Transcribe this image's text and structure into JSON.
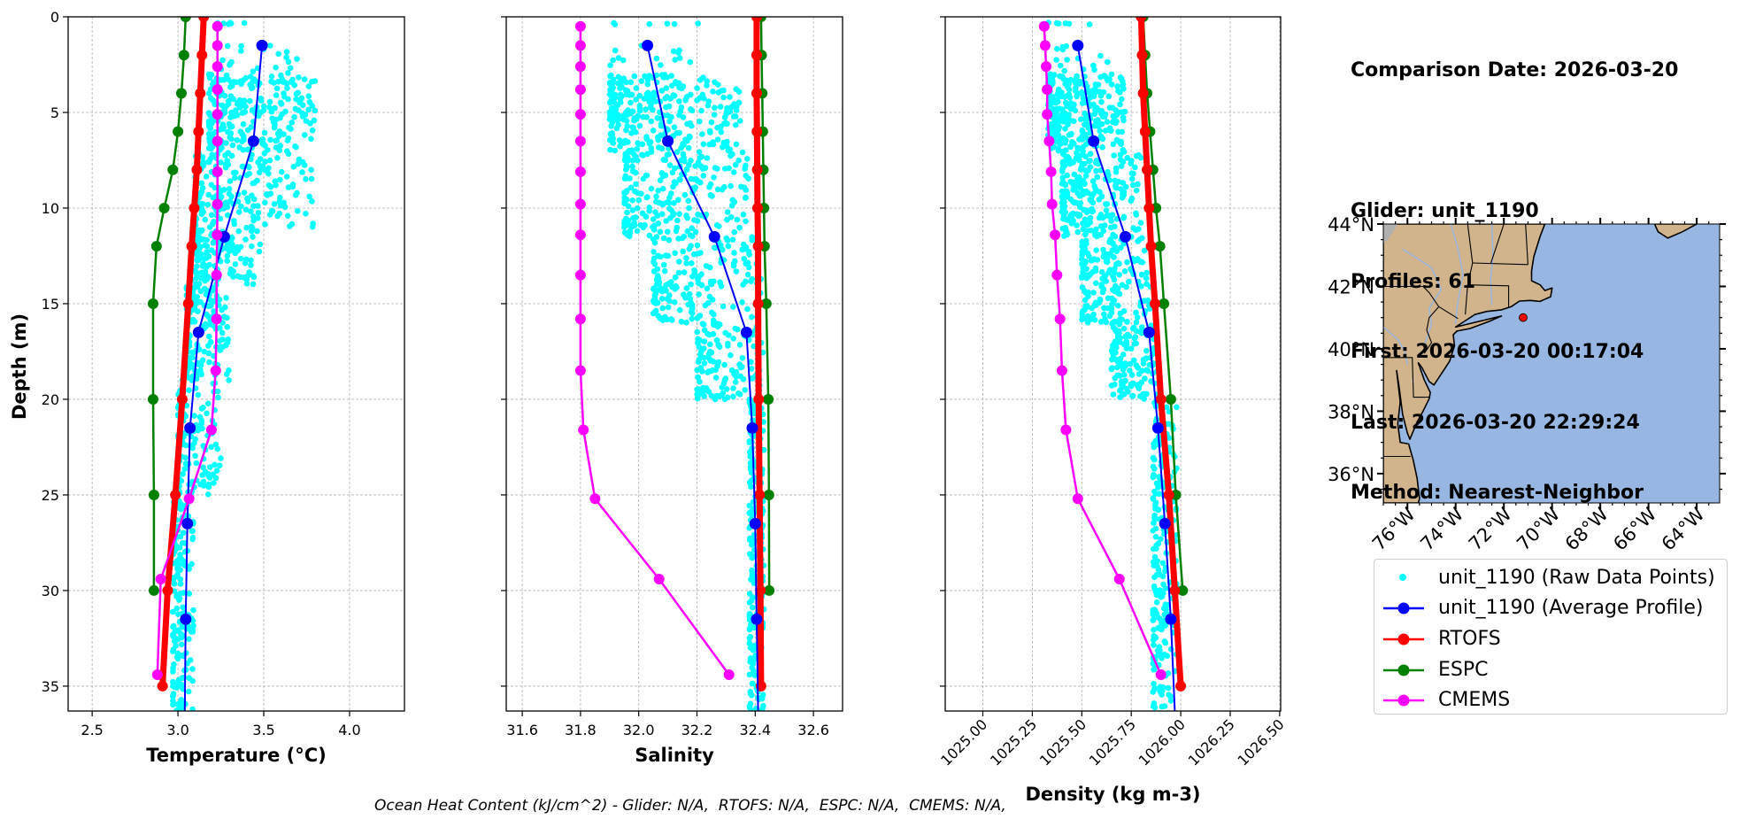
{
  "info_panel": {
    "comparison_date": "Comparison Date: 2026-03-20",
    "glider": "Glider: unit_1190",
    "profiles": "Profiles: 61",
    "first": "First: 2026-03-20 00:17:04",
    "last": "Last: 2026-03-20 22:29:24",
    "method": "Method: Nearest-Neighbor"
  },
  "footer": "Ocean Heat Content (kJ/cm^2) - Glider: N/A,  RTOFS: N/A,  ESPC: N/A,  CMEMS: N/A,",
  "colors": {
    "raw": "#00ffff",
    "glider_avg": "#0000ff",
    "rtofs": "#ff0000",
    "espc": "#008000",
    "cmems": "#ff00ff",
    "land": "#d2b48c",
    "ocean": "#97b6e1",
    "river": "#97b6e1",
    "lakes_gray": "#b0b0b0",
    "grid": "#b0b0b0"
  },
  "legend": {
    "items": [
      {
        "key": "raw",
        "label": "unit_1190 (Raw Data Points)",
        "style": "point"
      },
      {
        "key": "glider_avg",
        "label": "unit_1190 (Average Profile)",
        "style": "line-marker"
      },
      {
        "key": "rtofs",
        "label": "RTOFS",
        "style": "line-marker"
      },
      {
        "key": "espc",
        "label": "ESPC",
        "style": "line-marker"
      },
      {
        "key": "cmems",
        "label": "CMEMS",
        "style": "line-marker"
      }
    ]
  },
  "chart_data": [
    {
      "type": "line",
      "id": "temperature",
      "title": "",
      "xlabel": "Temperature (°C)",
      "ylabel": "Depth (m)",
      "xlim": [
        2.36,
        4.32
      ],
      "ylim": [
        36.3,
        0
      ],
      "xticks": [
        2.5,
        3.0,
        3.5,
        4.0
      ],
      "xtick_labels": [
        "2.5",
        "3.0",
        "3.5",
        "4.0"
      ],
      "yticks": [
        0,
        5,
        10,
        15,
        20,
        25,
        30,
        35
      ],
      "ytick_labels": [
        "0",
        "5",
        "10",
        "15",
        "20",
        "25",
        "30",
        "35"
      ],
      "grid": true,
      "raw_cloud": [
        {
          "depth": [
            0.3,
            0.4
          ],
          "x": [
            3.23,
            3.5
          ],
          "n": 6
        },
        {
          "depth": [
            1.5,
            3.5
          ],
          "x": [
            3.25,
            3.8
          ],
          "n": 30
        },
        {
          "depth": [
            3.0,
            7.0
          ],
          "x": [
            3.18,
            3.8
          ],
          "n": 230
        },
        {
          "depth": [
            7.0,
            11.0
          ],
          "x": [
            3.1,
            3.8
          ],
          "n": 200
        },
        {
          "depth": [
            11.0,
            14.0
          ],
          "x": [
            3.08,
            3.48
          ],
          "n": 150
        },
        {
          "depth": [
            14.0,
            19.0
          ],
          "x": [
            3.05,
            3.3
          ],
          "n": 160
        },
        {
          "depth": [
            19.0,
            25.0
          ],
          "x": [
            3.0,
            3.25
          ],
          "n": 120
        },
        {
          "depth": [
            25.0,
            36.3
          ],
          "x": [
            2.97,
            3.09
          ],
          "n": 180
        }
      ],
      "series": [
        {
          "name": "unit_1190 (Average Profile)",
          "key": "glider_avg",
          "depth": [
            1.5,
            6.5,
            11.5,
            16.5,
            21.5,
            26.5,
            31.5,
            36.3
          ],
          "values": [
            3.49,
            3.44,
            3.27,
            3.12,
            3.07,
            3.055,
            3.045,
            3.04
          ],
          "markers": [
            true,
            true,
            true,
            true,
            true,
            true,
            true,
            false
          ]
        },
        {
          "name": "RTOFS",
          "key": "rtofs",
          "depth": [
            0,
            2,
            4,
            6,
            8,
            10,
            12,
            15,
            20,
            25,
            30,
            35
          ],
          "values": [
            3.15,
            3.14,
            3.13,
            3.12,
            3.11,
            3.095,
            3.08,
            3.06,
            3.025,
            2.985,
            2.94,
            2.91
          ]
        },
        {
          "name": "ESPC",
          "key": "espc",
          "depth": [
            0,
            2,
            4,
            6,
            8,
            10,
            12,
            15,
            20,
            25,
            30
          ],
          "values": [
            3.045,
            3.035,
            3.02,
            3.0,
            2.97,
            2.92,
            2.875,
            2.855,
            2.855,
            2.86,
            2.86
          ]
        },
        {
          "name": "CMEMS",
          "key": "cmems",
          "depth": [
            0.5,
            1.5,
            2.6,
            3.8,
            5.1,
            6.5,
            8.1,
            9.8,
            11.4,
            13.5,
            15.8,
            18.5,
            21.6,
            25.2,
            29.4,
            34.4
          ],
          "values": [
            3.23,
            3.23,
            3.23,
            3.23,
            3.23,
            3.23,
            3.23,
            3.23,
            3.228,
            3.225,
            3.225,
            3.22,
            3.195,
            3.065,
            2.9,
            2.88
          ]
        }
      ]
    },
    {
      "type": "line",
      "id": "salinity",
      "xlabel": "Salinity",
      "ylabel": "",
      "xlim": [
        31.545,
        32.7
      ],
      "ylim": [
        36.3,
        0
      ],
      "xticks": [
        31.6,
        31.8,
        32.0,
        32.2,
        32.4,
        32.6
      ],
      "xtick_labels": [
        "31.6",
        "31.8",
        "32.0",
        "32.2",
        "32.4",
        "32.6"
      ],
      "yticks": [
        0,
        5,
        10,
        15,
        20,
        25,
        30,
        35
      ],
      "ytick_labels": [],
      "grid": true,
      "raw_cloud": [
        {
          "depth": [
            0.3,
            0.4
          ],
          "x": [
            31.9,
            32.3
          ],
          "n": 6
        },
        {
          "depth": [
            1.5,
            3.0
          ],
          "x": [
            31.9,
            32.25
          ],
          "n": 14
        },
        {
          "depth": [
            3.0,
            7.0
          ],
          "x": [
            31.9,
            32.35
          ],
          "n": 280
        },
        {
          "depth": [
            7.0,
            11.5
          ],
          "x": [
            31.95,
            32.38
          ],
          "n": 230
        },
        {
          "depth": [
            11.5,
            16.0
          ],
          "x": [
            32.05,
            32.42
          ],
          "n": 180
        },
        {
          "depth": [
            16.0,
            20.0
          ],
          "x": [
            32.2,
            32.43
          ],
          "n": 130
        },
        {
          "depth": [
            20.0,
            36.3
          ],
          "x": [
            32.38,
            32.43
          ],
          "n": 220
        }
      ],
      "series": [
        {
          "name": "unit_1190 (Average Profile)",
          "key": "glider_avg",
          "depth": [
            1.5,
            6.5,
            11.5,
            16.5,
            21.5,
            26.5,
            31.5,
            36.3
          ],
          "values": [
            32.03,
            32.1,
            32.26,
            32.37,
            32.39,
            32.4,
            32.405,
            32.41
          ],
          "markers": [
            true,
            true,
            true,
            true,
            true,
            true,
            true,
            false
          ]
        },
        {
          "name": "RTOFS",
          "key": "rtofs",
          "depth": [
            0,
            2,
            4,
            6,
            8,
            10,
            12,
            15,
            20,
            25,
            30,
            35
          ],
          "values": [
            32.405,
            32.405,
            32.405,
            32.406,
            32.407,
            32.408,
            32.41,
            32.41,
            32.412,
            32.415,
            32.418,
            32.42
          ]
        },
        {
          "name": "ESPC",
          "key": "espc",
          "depth": [
            0,
            2,
            4,
            6,
            8,
            10,
            12,
            15,
            20,
            25,
            30
          ],
          "values": [
            32.42,
            32.422,
            32.424,
            32.426,
            32.428,
            32.43,
            32.432,
            32.438,
            32.445,
            32.447,
            32.448
          ]
        },
        {
          "name": "CMEMS",
          "key": "cmems",
          "depth": [
            0.5,
            1.5,
            2.6,
            3.8,
            5.1,
            6.5,
            8.1,
            9.8,
            11.4,
            13.5,
            15.8,
            18.5,
            21.6,
            25.2,
            29.4,
            34.4
          ],
          "values": [
            31.8,
            31.8,
            31.8,
            31.8,
            31.8,
            31.8,
            31.8,
            31.8,
            31.8,
            31.8,
            31.8,
            31.8,
            31.81,
            31.85,
            32.07,
            32.31
          ]
        }
      ]
    },
    {
      "type": "line",
      "id": "density",
      "xlabel": "Density (kg m-3)",
      "ylabel": "",
      "xlim": [
        1024.81,
        1026.505
      ],
      "ylim": [
        36.3,
        0
      ],
      "xticks": [
        1025.0,
        1025.25,
        1025.5,
        1025.75,
        1026.0,
        1026.25,
        1026.5
      ],
      "xtick_labels": [
        "1025.00",
        "1025.25",
        "1025.50",
        "1025.75",
        "1026.00",
        "1026.25",
        "1026.50"
      ],
      "yticks": [
        0,
        5,
        10,
        15,
        20,
        25,
        30,
        35
      ],
      "ytick_labels": [],
      "grid": true,
      "raw_cloud": [
        {
          "depth": [
            0.3,
            0.4
          ],
          "x": [
            1025.33,
            1025.6
          ],
          "n": 6
        },
        {
          "depth": [
            1.5,
            3.0
          ],
          "x": [
            1025.35,
            1025.65
          ],
          "n": 14
        },
        {
          "depth": [
            3.0,
            7.0
          ],
          "x": [
            1025.33,
            1025.72
          ],
          "n": 280
        },
        {
          "depth": [
            7.0,
            11.5
          ],
          "x": [
            1025.4,
            1025.8
          ],
          "n": 230
        },
        {
          "depth": [
            11.5,
            16.0
          ],
          "x": [
            1025.5,
            1025.85
          ],
          "n": 180
        },
        {
          "depth": [
            16.0,
            20.0
          ],
          "x": [
            1025.65,
            1025.88
          ],
          "n": 130
        },
        {
          "depth": [
            20.0,
            36.3
          ],
          "x": [
            1025.86,
            1025.98
          ],
          "n": 220
        }
      ],
      "series": [
        {
          "name": "unit_1190 (Average Profile)",
          "key": "glider_avg",
          "depth": [
            1.5,
            6.5,
            11.5,
            16.5,
            21.5,
            26.5,
            31.5,
            36.3
          ],
          "values": [
            1025.48,
            1025.56,
            1025.72,
            1025.84,
            1025.885,
            1025.92,
            1025.95,
            1025.97
          ],
          "markers": [
            true,
            true,
            true,
            true,
            true,
            true,
            true,
            false
          ]
        },
        {
          "name": "RTOFS",
          "key": "rtofs",
          "depth": [
            0,
            2,
            4,
            6,
            8,
            10,
            12,
            15,
            20,
            25,
            30,
            35
          ],
          "values": [
            1025.8,
            1025.805,
            1025.81,
            1025.82,
            1025.83,
            1025.84,
            1025.85,
            1025.87,
            1025.9,
            1025.94,
            1025.97,
            1026.0
          ]
        },
        {
          "name": "ESPC",
          "key": "espc",
          "depth": [
            0,
            2,
            4,
            6,
            8,
            10,
            12,
            15,
            20,
            25,
            30
          ],
          "values": [
            1025.81,
            1025.82,
            1025.83,
            1025.845,
            1025.86,
            1025.875,
            1025.895,
            1025.915,
            1025.95,
            1025.975,
            1026.01
          ]
        },
        {
          "name": "CMEMS",
          "key": "cmems",
          "depth": [
            0.5,
            1.5,
            2.6,
            3.8,
            5.1,
            6.5,
            8.1,
            9.8,
            11.4,
            13.5,
            15.8,
            18.5,
            21.6,
            25.2,
            29.4,
            34.4
          ],
          "values": [
            1025.31,
            1025.315,
            1025.32,
            1025.325,
            1025.325,
            1025.335,
            1025.345,
            1025.35,
            1025.365,
            1025.375,
            1025.39,
            1025.4,
            1025.42,
            1025.48,
            1025.69,
            1025.9
          ]
        }
      ]
    }
  ],
  "map": {
    "lon_range": [
      -77.0,
      -63.05
    ],
    "lat_range": [
      35.06,
      44.0
    ],
    "lon_ticks": [
      -76,
      -74,
      -72,
      -70,
      -68,
      -66,
      -64
    ],
    "lon_tick_labels": [
      "76°W",
      "74°W",
      "72°W",
      "70°W",
      "68°W",
      "66°W",
      "64°W"
    ],
    "lat_ticks": [
      36,
      38,
      40,
      42,
      44
    ],
    "lat_tick_labels": [
      "36°N",
      "38°N",
      "40°N",
      "42°N",
      "44°N"
    ],
    "glider_position": {
      "lon": -71.2,
      "lat": 41.0
    },
    "coastline": [
      [
        -77.0,
        44.0
      ],
      [
        -70.3,
        44.0
      ],
      [
        -70.5,
        43.6
      ],
      [
        -70.76,
        42.95
      ],
      [
        -70.85,
        42.5
      ],
      [
        -70.85,
        42.18
      ],
      [
        -70.5,
        42.05
      ],
      [
        -70.3,
        41.87
      ],
      [
        -70.0,
        41.95
      ],
      [
        -70.06,
        41.67
      ],
      [
        -70.5,
        41.52
      ],
      [
        -70.9,
        41.55
      ],
      [
        -71.35,
        41.53
      ],
      [
        -71.7,
        41.35
      ],
      [
        -72.1,
        41.25
      ],
      [
        -72.7,
        41.2
      ],
      [
        -73.2,
        41.1
      ],
      [
        -73.7,
        40.85
      ],
      [
        -74.0,
        40.7
      ],
      [
        -72.1,
        41.05
      ],
      [
        -72.6,
        40.88
      ],
      [
        -73.4,
        40.65
      ],
      [
        -73.95,
        40.57
      ],
      [
        -74.1,
        40.45
      ],
      [
        -74.05,
        40.1
      ],
      [
        -74.25,
        39.6
      ],
      [
        -74.55,
        39.25
      ],
      [
        -74.9,
        38.84
      ],
      [
        -75.1,
        38.95
      ],
      [
        -75.4,
        39.4
      ],
      [
        -75.55,
        39.55
      ],
      [
        -75.3,
        39.0
      ],
      [
        -75.05,
        38.6
      ],
      [
        -75.1,
        38.4
      ],
      [
        -75.35,
        38.0
      ],
      [
        -75.6,
        37.65
      ],
      [
        -75.9,
        37.1
      ],
      [
        -76.0,
        37.3
      ],
      [
        -76.2,
        37.9
      ],
      [
        -76.35,
        38.8
      ],
      [
        -76.45,
        39.3
      ],
      [
        -76.3,
        38.3
      ],
      [
        -76.4,
        37.6
      ],
      [
        -76.3,
        37.0
      ],
      [
        -75.95,
        36.95
      ],
      [
        -75.76,
        36.43
      ],
      [
        -75.6,
        35.86
      ],
      [
        -75.5,
        35.2
      ],
      [
        -75.55,
        35.06
      ],
      [
        -77.0,
        35.06
      ]
    ],
    "nova_scotia": [
      [
        -65.75,
        44.0
      ],
      [
        -64.0,
        44.0
      ],
      [
        -64.6,
        43.75
      ],
      [
        -65.2,
        43.55
      ],
      [
        -65.6,
        43.75
      ]
    ],
    "states": [
      [
        [
          -77.0,
          42.0
        ],
        [
          -75.35,
          42.0
        ],
        [
          -75.1,
          41.8
        ],
        [
          -74.7,
          41.35
        ],
        [
          -73.9,
          40.97
        ]
      ],
      [
        [
          -74.7,
          41.35
        ],
        [
          -75.1,
          41.0
        ],
        [
          -75.2,
          40.6
        ],
        [
          -75.0,
          40.2
        ],
        [
          -75.3,
          39.85
        ]
      ],
      [
        [
          -77.0,
          39.72
        ],
        [
          -75.8,
          39.72
        ],
        [
          -75.75,
          38.45
        ],
        [
          -75.05,
          38.45
        ]
      ],
      [
        [
          -73.5,
          44.0
        ],
        [
          -73.3,
          42.75
        ],
        [
          -73.5,
          42.05
        ],
        [
          -73.6,
          41.1
        ]
      ],
      [
        [
          -73.5,
          42.05
        ],
        [
          -71.8,
          42.02
        ],
        [
          -71.8,
          41.33
        ]
      ],
      [
        [
          -73.3,
          42.75
        ],
        [
          -71.0,
          42.7
        ]
      ],
      [
        [
          -72.55,
          42.72
        ],
        [
          -72.0,
          44.0
        ]
      ],
      [
        [
          -71.0,
          42.7
        ],
        [
          -71.1,
          44.0
        ]
      ],
      [
        [
          -77.0,
          36.55
        ],
        [
          -75.87,
          36.55
        ]
      ]
    ]
  }
}
